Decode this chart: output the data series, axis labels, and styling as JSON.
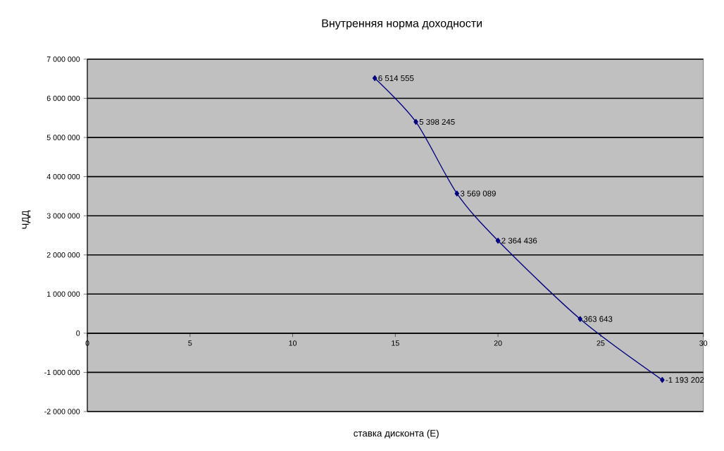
{
  "chart_data": {
    "type": "line",
    "title": "Внутренняя норма доходности",
    "xlabel": "ставка дисконта (E)",
    "ylabel": "ЧДД",
    "x": [
      14,
      16,
      18,
      20,
      24,
      28
    ],
    "series": [
      {
        "color": "#000080",
        "values": [
          6514555,
          5398245,
          3569089,
          2364436,
          363643,
          -1193202
        ],
        "value_labels": [
          "6 514 555",
          "5 398 245",
          "3 569 089",
          "2 364 436",
          "363 643",
          "-1 193 202"
        ]
      }
    ],
    "xlim": [
      0,
      30
    ],
    "xticks": [
      0,
      5,
      10,
      15,
      20,
      25,
      30
    ],
    "ylim": [
      -2000000,
      7000000
    ],
    "yticks": [
      {
        "value": -2000000,
        "label": "-2 000 000"
      },
      {
        "value": -1000000,
        "label": "-1 000 000"
      },
      0,
      {
        "value": 1000000,
        "label": "1 000 000"
      },
      {
        "value": 2000000,
        "label": "2 000 000"
      },
      {
        "value": 3000000,
        "label": "3 000 000"
      },
      {
        "value": 4000000,
        "label": "4 000 000"
      },
      {
        "value": 5000000,
        "label": "5 000 000"
      },
      {
        "value": 6000000,
        "label": "6 000 000"
      },
      {
        "value": 7000000,
        "label": "7 000 000"
      }
    ],
    "grid": "y",
    "marker": "diamond",
    "line_style": "solid"
  }
}
